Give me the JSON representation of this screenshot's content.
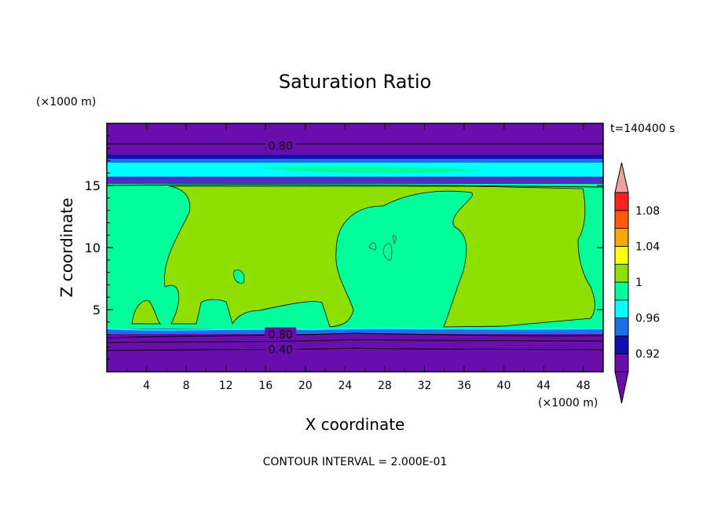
{
  "chart_data": {
    "type": "heatmap",
    "title": "Saturation Ratio",
    "xlabel": "X coordinate",
    "ylabel": "Z coordinate",
    "x_unit": "(×1000 m)",
    "y_unit": "(×1000 m)",
    "xlim": [
      0,
      50
    ],
    "ylim": [
      0,
      20
    ],
    "x_ticks": [
      4,
      8,
      12,
      16,
      20,
      24,
      28,
      32,
      36,
      40,
      44,
      48
    ],
    "y_ticks": [
      5,
      10,
      15
    ],
    "time_label": "t=140400 s",
    "contour_interval": "CONTOUR INTERVAL = 2.000E-01",
    "contour_labels": [
      {
        "text": "0.80",
        "x": 17.5,
        "z": 18.2
      },
      {
        "text": "0.80",
        "x": 17.5,
        "z": 3.0
      },
      {
        "text": "0.40",
        "x": 17.5,
        "z": 1.8
      }
    ],
    "colorbar": {
      "colors": [
        "#6a0dad",
        "#1010b0",
        "#1e6ee8",
        "#00ffff",
        "#00ff9a",
        "#8ee000",
        "#ffff00",
        "#ffa500",
        "#ff5a00",
        "#ff2020",
        "#f4a0a0"
      ],
      "boundaries": [
        0.9,
        0.92,
        0.94,
        0.96,
        0.98,
        1.0,
        1.02,
        1.04,
        1.06,
        1.08,
        1.1
      ],
      "tick_labels": [
        "0.92",
        "0.96",
        "1",
        "1.04",
        "1.08"
      ],
      "tick_values": [
        0.92,
        0.96,
        1.0,
        1.04,
        1.08
      ]
    }
  }
}
